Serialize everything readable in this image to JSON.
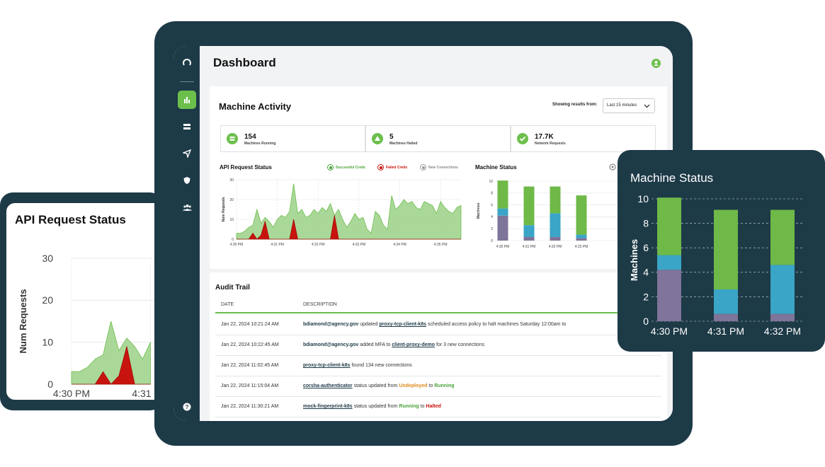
{
  "dashboard": {
    "title": "Dashboard",
    "colors": {
      "accent": "#6cbf4b",
      "frame": "#1d3a47",
      "failed": "#c8140e",
      "purple": "#7f7499",
      "blue": "#3aa5c6",
      "green": "#6fb948"
    },
    "sidebar_icons": [
      "logo-icon",
      "bar-chart-icon",
      "server-icon",
      "send-icon",
      "shield-icon",
      "users-icon",
      "help-icon"
    ]
  },
  "machine_activity": {
    "title": "Machine Activity",
    "range_label": "Showing results from:",
    "range_value": "Last 15 minutes",
    "stats": [
      {
        "value": "154",
        "label": "Machines Running"
      },
      {
        "value": "5",
        "label": "Machines Halted"
      },
      {
        "value": "17.7K",
        "label": "Network Requests"
      }
    ]
  },
  "api_chart": {
    "title": "API Request Status",
    "ylabel": "Num Requests",
    "legend": [
      "Successful Creds",
      "Failed Creds",
      "New Connections"
    ]
  },
  "status_chart": {
    "title": "Machine Status",
    "ylabel": "Machines"
  },
  "chart_data": [
    {
      "type": "area",
      "title": "API Request Status",
      "ylabel": "Num Requests",
      "ylim": [
        0,
        30
      ],
      "yticks": [
        0,
        10,
        20,
        30
      ],
      "xticks": [
        "4:30 PM",
        "4:31 PM",
        "4:32 PM",
        "4:33 PM",
        "4:34 PM",
        "4:35 PM"
      ],
      "x": [
        0,
        0.1,
        0.2,
        0.3,
        0.4,
        0.5,
        0.6,
        0.7,
        0.8,
        0.9,
        1.0,
        1.1,
        1.2,
        1.3,
        1.4,
        1.5,
        1.6,
        1.7,
        1.8,
        1.9,
        2.0,
        2.1,
        2.2,
        2.3,
        2.4,
        2.5,
        2.6,
        2.7,
        2.8,
        2.9,
        3.0,
        3.1,
        3.2,
        3.3,
        3.4,
        3.5,
        3.6,
        3.7,
        3.8,
        3.9,
        4.0,
        4.1,
        4.2,
        4.3,
        4.4,
        4.5,
        4.6,
        4.7,
        4.8,
        4.9,
        5.0,
        5.1,
        5.2,
        5.3,
        5.4,
        5.5
      ],
      "series": [
        {
          "name": "Successful Creds",
          "values": [
            3,
            3,
            4,
            6,
            7,
            15,
            8,
            11,
            9,
            6,
            10,
            12,
            11,
            14,
            28,
            13,
            15,
            11,
            12,
            15,
            13,
            16,
            14,
            18,
            12,
            15,
            10,
            6,
            9,
            13,
            10,
            11,
            5,
            3,
            14,
            12,
            7,
            5,
            22,
            15,
            17,
            20,
            18,
            19,
            16,
            15,
            19,
            18,
            17,
            13,
            19,
            16,
            14,
            13,
            16,
            17
          ]
        },
        {
          "name": "Failed Creds",
          "values": [
            0,
            0,
            0,
            0,
            3,
            0,
            2,
            9,
            0,
            0,
            0,
            0,
            0,
            0,
            10,
            0,
            0,
            0,
            0,
            0,
            0,
            0,
            0,
            0,
            12,
            0,
            0,
            0,
            0,
            0,
            0,
            0,
            0,
            0,
            0,
            0,
            0,
            0,
            0,
            0,
            0,
            0,
            0,
            0,
            0,
            0,
            0,
            0,
            0,
            0,
            0,
            0,
            0,
            0,
            0,
            0
          ]
        },
        {
          "name": "New Connections",
          "values": [
            0,
            0,
            0,
            0,
            0,
            0,
            0,
            0,
            0,
            0,
            0,
            0,
            0,
            0,
            0,
            0,
            0,
            0,
            0,
            0,
            0,
            0,
            0,
            0,
            0,
            0,
            0,
            0,
            0,
            0,
            0,
            0,
            0,
            0,
            0,
            0,
            0,
            0,
            0,
            0,
            0,
            0,
            0,
            0,
            0,
            0,
            0,
            0,
            0,
            0,
            0,
            0,
            0,
            0,
            0,
            0
          ]
        }
      ]
    },
    {
      "type": "bar",
      "stacked": true,
      "title": "Machine Status",
      "ylabel": "Machines",
      "ylim": [
        0,
        10
      ],
      "yticks": [
        0,
        2,
        4,
        6,
        8,
        10
      ],
      "categories": [
        "4:30 PM",
        "4:31 PM",
        "4:32 PM",
        "4:33 PM"
      ],
      "series": [
        {
          "values": [
            4.2,
            0.6,
            0.6,
            0.4
          ]
        },
        {
          "values": [
            1.2,
            2.0,
            4.0,
            0.6
          ]
        },
        {
          "values": [
            4.7,
            6.5,
            4.5,
            6.6
          ]
        }
      ]
    }
  ],
  "audit_trail": {
    "title": "Audit Trail",
    "columns": [
      "DATE",
      "DESCRIPTION"
    ],
    "rows": [
      {
        "date": "Jan 22, 2024 10:21:24 AM",
        "parts": [
          [
            "b",
            "bdiamond@agency.gov"
          ],
          [
            "t",
            " updated "
          ],
          [
            "l",
            "proxy-tcp-client-k8s"
          ],
          [
            "t",
            " scheduled access policy to halt machines Saturday 12:00am to"
          ]
        ]
      },
      {
        "date": "Jan 22, 2024 10:22:45 AM",
        "parts": [
          [
            "b",
            "bdiamond@agency.gov"
          ],
          [
            "t",
            " added MFA to "
          ],
          [
            "l",
            "client-proxy-demo"
          ],
          [
            "t",
            " for 3 new connections"
          ]
        ]
      },
      {
        "date": "Jan 22, 2024 11:02:45 AM",
        "parts": [
          [
            "l",
            "proxy-tcp-client-k8s"
          ],
          [
            "t",
            " found 134 new connections"
          ]
        ]
      },
      {
        "date": "Jan 22, 2024 11:15:04 AM",
        "parts": [
          [
            "l",
            " corsha-authenticator"
          ],
          [
            "t",
            " status updated from "
          ],
          [
            "o",
            "Undeployed"
          ],
          [
            "t",
            " to "
          ],
          [
            "g",
            "Running"
          ]
        ]
      },
      {
        "date": "Jan 22, 2024 11:30:21 AM",
        "parts": [
          [
            "l",
            "mock-fingerprint-k8s"
          ],
          [
            "t",
            " status updated from "
          ],
          [
            "g",
            "Running"
          ],
          [
            "t",
            " to "
          ],
          [
            "r",
            "Halted"
          ]
        ]
      }
    ]
  }
}
